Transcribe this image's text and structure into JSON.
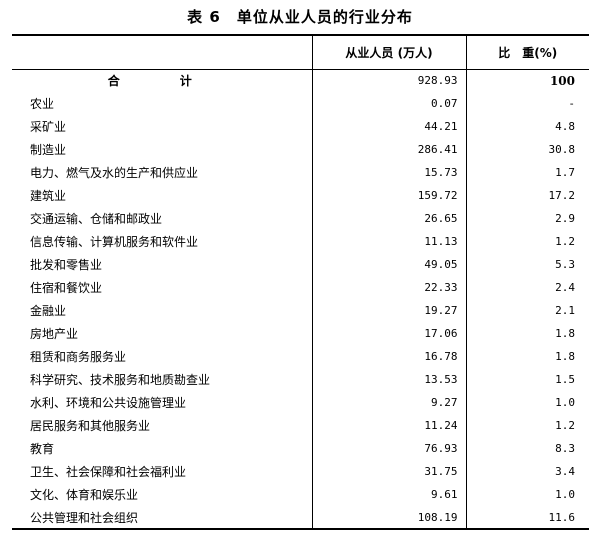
{
  "title": "表 6　单位从业人员的行业分布",
  "columns": {
    "employment": "从业人员 (万人)",
    "share": "比　重(%)"
  },
  "total": {
    "label": "合　计",
    "employment": "928.93",
    "share": "100"
  },
  "rows": [
    {
      "industry": "农业",
      "employment": "0.07",
      "share": "-"
    },
    {
      "industry": "采矿业",
      "employment": "44.21",
      "share": "4.8"
    },
    {
      "industry": "制造业",
      "employment": "286.41",
      "share": "30.8"
    },
    {
      "industry": "电力、燃气及水的生产和供应业",
      "employment": "15.73",
      "share": "1.7"
    },
    {
      "industry": "建筑业",
      "employment": "159.72",
      "share": "17.2"
    },
    {
      "industry": "交通运输、仓储和邮政业",
      "employment": "26.65",
      "share": "2.9"
    },
    {
      "industry": "信息传输、计算机服务和软件业",
      "employment": "11.13",
      "share": "1.2"
    },
    {
      "industry": "批发和零售业",
      "employment": "49.05",
      "share": "5.3"
    },
    {
      "industry": "住宿和餐饮业",
      "employment": "22.33",
      "share": "2.4"
    },
    {
      "industry": "金融业",
      "employment": "19.27",
      "share": "2.1"
    },
    {
      "industry": "房地产业",
      "employment": "17.06",
      "share": "1.8"
    },
    {
      "industry": "租赁和商务服务业",
      "employment": "16.78",
      "share": "1.8"
    },
    {
      "industry": "科学研究、技术服务和地质勘查业",
      "employment": "13.53",
      "share": "1.5"
    },
    {
      "industry": "水利、环境和公共设施管理业",
      "employment": "9.27",
      "share": "1.0"
    },
    {
      "industry": "居民服务和其他服务业",
      "employment": "11.24",
      "share": "1.2"
    },
    {
      "industry": "教育",
      "employment": "76.93",
      "share": "8.3"
    },
    {
      "industry": "卫生、社会保障和社会福利业",
      "employment": "31.75",
      "share": "3.4"
    },
    {
      "industry": "文化、体育和娱乐业",
      "employment": "9.61",
      "share": "1.0"
    },
    {
      "industry": "公共管理和社会组织",
      "employment": "108.19",
      "share": "11.6"
    }
  ]
}
